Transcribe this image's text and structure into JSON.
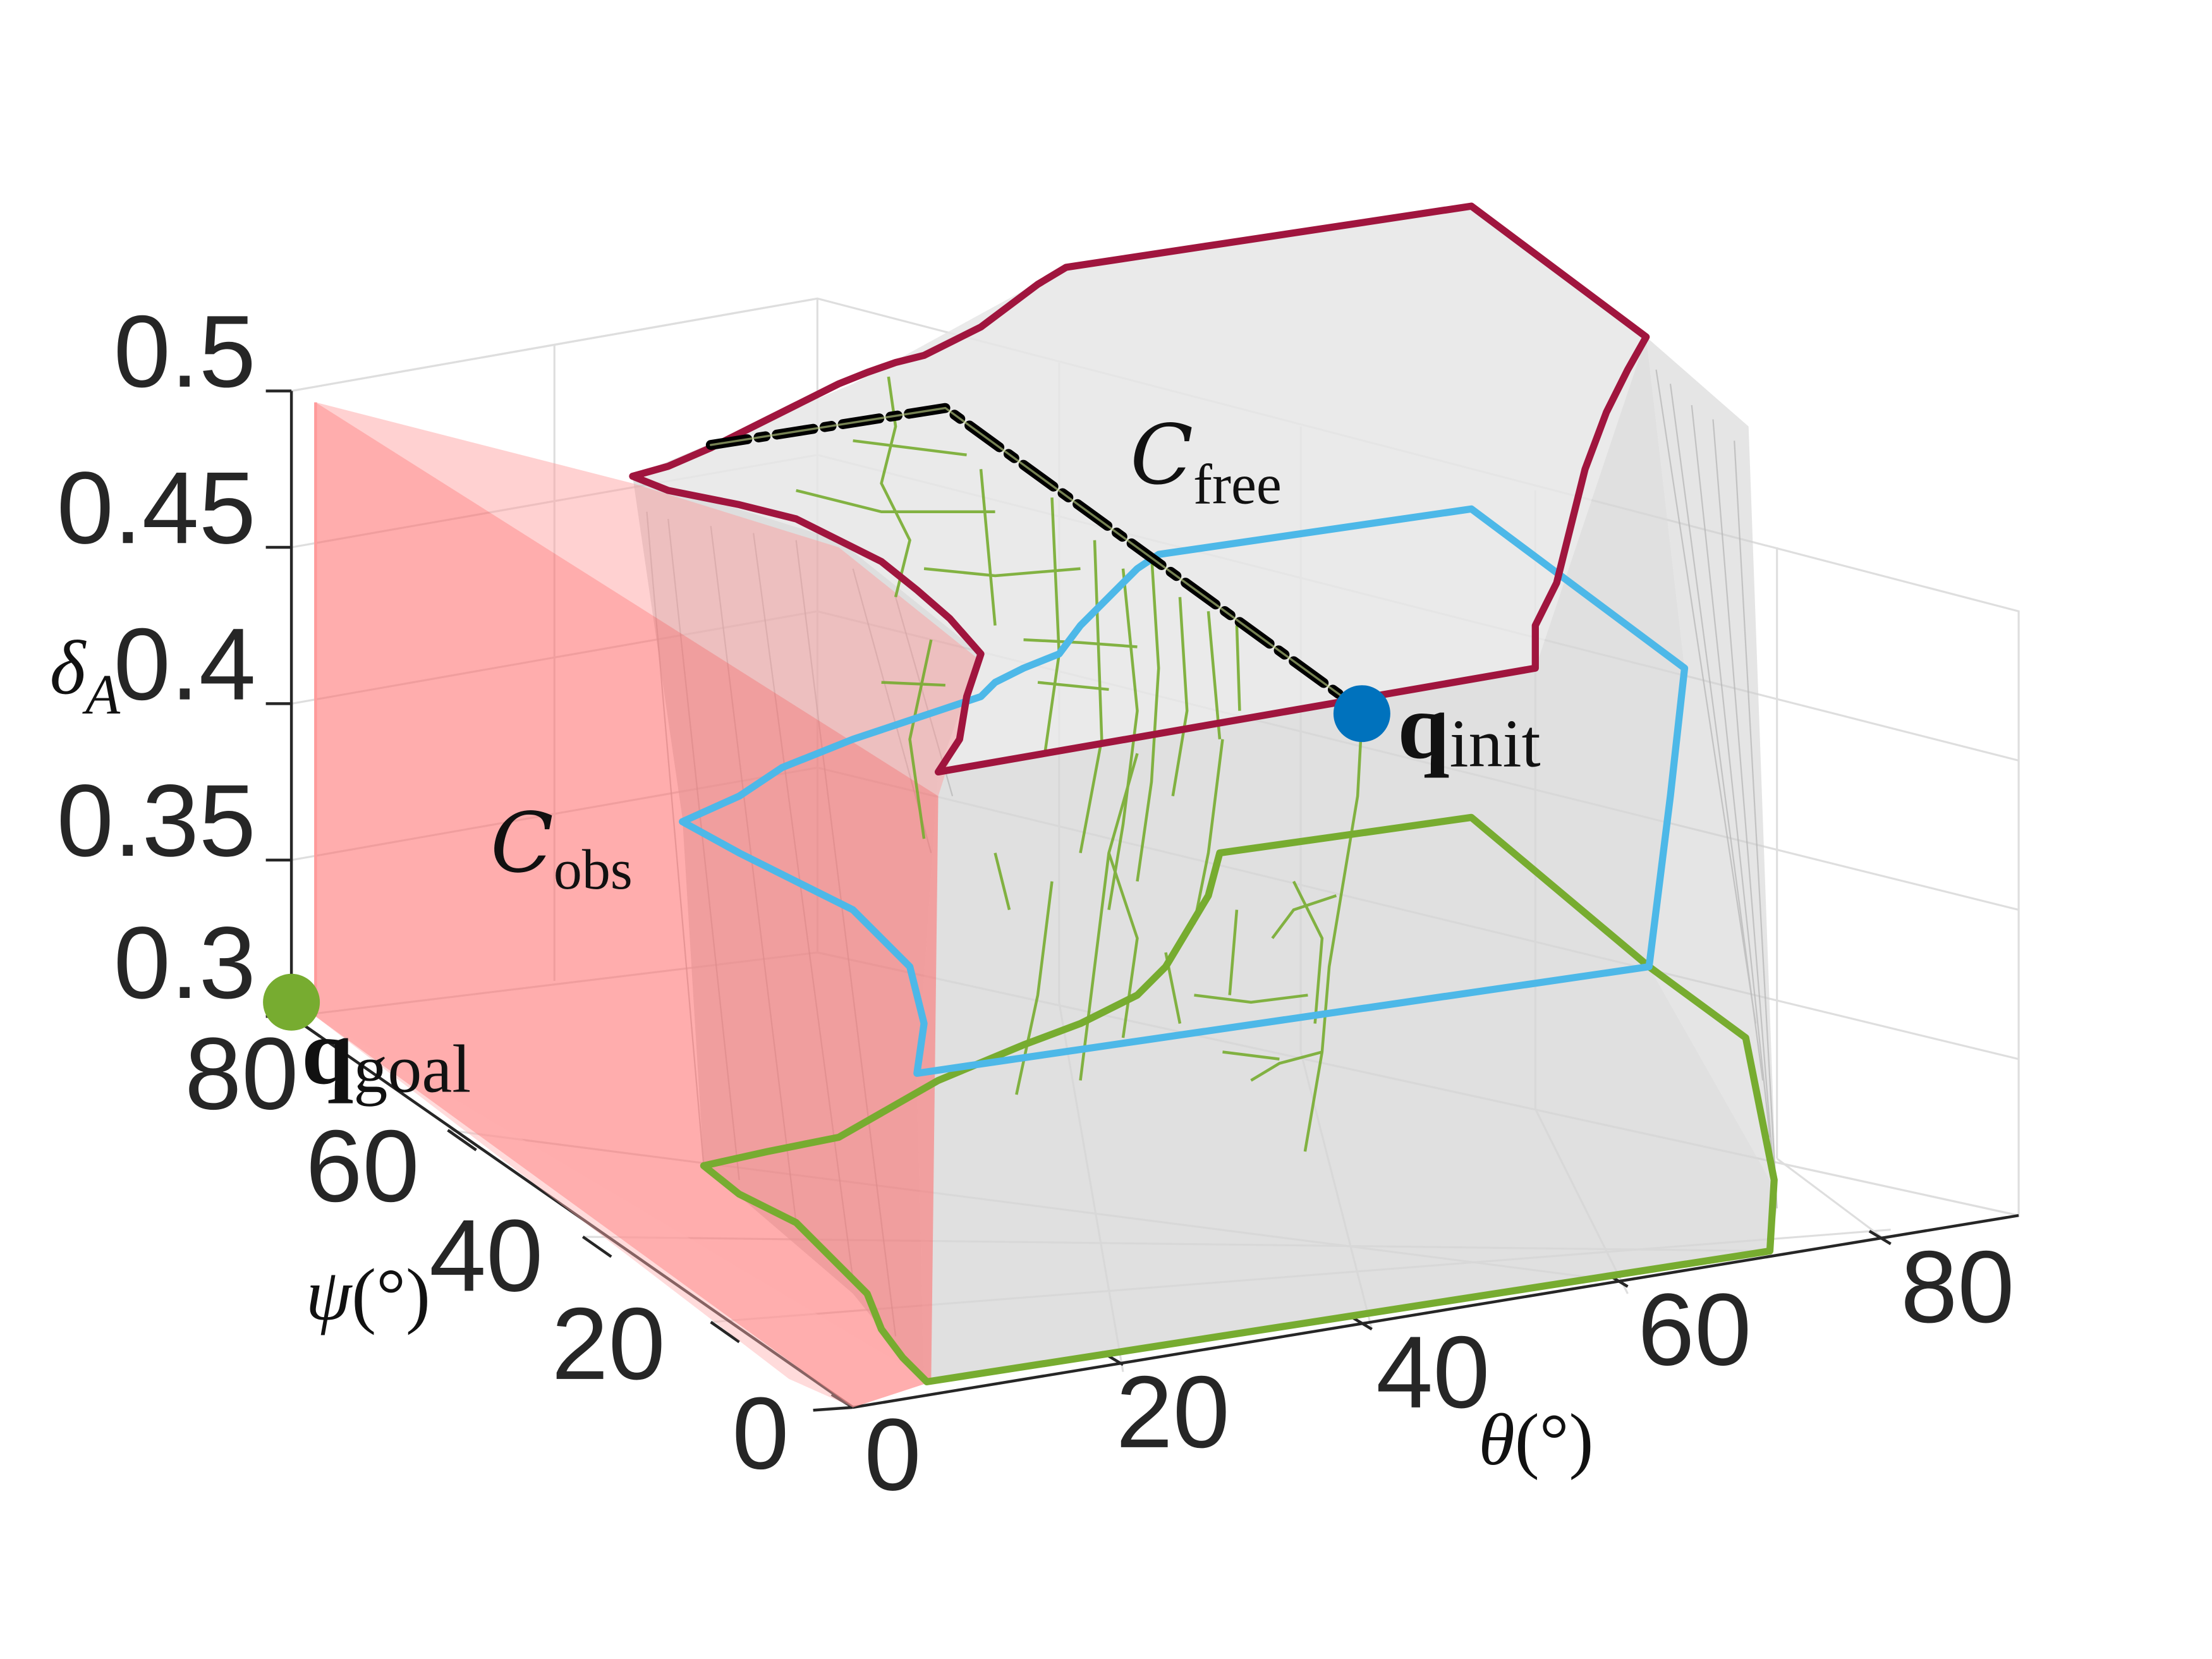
{
  "chart_data": {
    "type": "3d-surface",
    "axes": {
      "x": {
        "label_sym": "θ",
        "label_unit": "(°)",
        "ticks": [
          "0",
          "20",
          "40",
          "60",
          "80"
        ]
      },
      "y": {
        "label_sym": "ψ",
        "label_unit": "(°)",
        "ticks": [
          "0",
          "20",
          "40",
          "60",
          "80"
        ]
      },
      "z": {
        "label_sym": "δ",
        "label_sub": "A",
        "ticks": [
          "0.3",
          "0.35",
          "0.4",
          "0.45",
          "0.5"
        ],
        "ylim": [
          0.3,
          0.5
        ]
      }
    },
    "annotations": {
      "c_free": {
        "main": "C",
        "sub": "free"
      },
      "c_obs": {
        "main": "C",
        "sub": "obs"
      },
      "q_init": {
        "main": "q",
        "sub": "init"
      },
      "q_goal": {
        "main": "q",
        "sub": "goal"
      }
    },
    "colors": {
      "top_boundary": "#a0153e",
      "middle_boundary": "#4db8e8",
      "bottom_boundary": "#77ac30",
      "free_surface": "#d4d4d4",
      "obstacle": "#ff6666",
      "path": "#000000",
      "tree": "#77ac30",
      "q_init": "#0072bd",
      "q_goal": "#77ac30"
    },
    "series": [
      {
        "name": "top boundary"
      },
      {
        "name": "middle boundary"
      },
      {
        "name": "bottom boundary"
      },
      {
        "name": "solution path"
      }
    ]
  }
}
